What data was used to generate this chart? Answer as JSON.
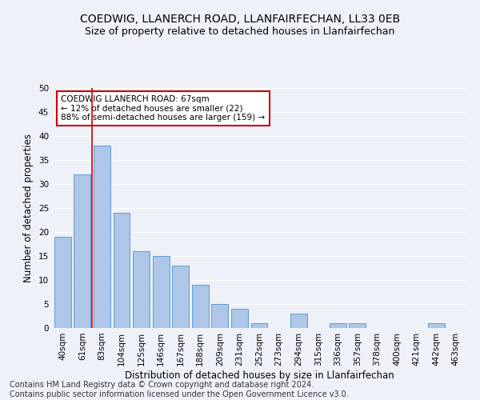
{
  "title": "COEDWIG, LLANERCH ROAD, LLANFAIRFECHAN, LL33 0EB",
  "subtitle": "Size of property relative to detached houses in Llanfairfechan",
  "xlabel": "Distribution of detached houses by size in Llanfairfechan",
  "ylabel": "Number of detached properties",
  "categories": [
    "40sqm",
    "61sqm",
    "83sqm",
    "104sqm",
    "125sqm",
    "146sqm",
    "167sqm",
    "188sqm",
    "209sqm",
    "231sqm",
    "252sqm",
    "273sqm",
    "294sqm",
    "315sqm",
    "336sqm",
    "357sqm",
    "378sqm",
    "400sqm",
    "421sqm",
    "442sqm",
    "463sqm"
  ],
  "values": [
    19,
    32,
    38,
    24,
    16,
    15,
    13,
    9,
    5,
    4,
    1,
    0,
    3,
    0,
    1,
    1,
    0,
    0,
    0,
    1,
    0
  ],
  "bar_color": "#aec6e8",
  "bar_edge_color": "#5b9bd5",
  "annotation_text_line1": "COEDWIG LLANERCH ROAD: 67sqm",
  "annotation_text_line2": "← 12% of detached houses are smaller (22)",
  "annotation_text_line3": "88% of semi-detached houses are larger (159) →",
  "annotation_box_color": "#ffffff",
  "annotation_box_edge": "#cc0000",
  "vline_color": "#cc0000",
  "vline_x": 1.5,
  "ylim": [
    0,
    50
  ],
  "yticks": [
    0,
    5,
    10,
    15,
    20,
    25,
    30,
    35,
    40,
    45,
    50
  ],
  "footer_line1": "Contains HM Land Registry data © Crown copyright and database right 2024.",
  "footer_line2": "Contains public sector information licensed under the Open Government Licence v3.0.",
  "background_color": "#eef2f8",
  "plot_bg_color": "#eef2f8",
  "grid_color": "#ffffff",
  "title_fontsize": 10,
  "subtitle_fontsize": 9,
  "axis_label_fontsize": 8.5,
  "tick_fontsize": 7.5,
  "footer_fontsize": 7,
  "annotation_fontsize": 7.5
}
